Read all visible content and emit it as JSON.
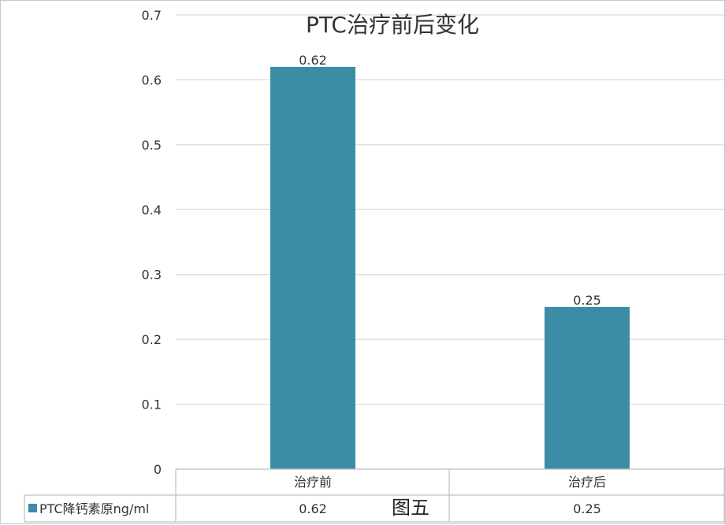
{
  "chart_data": {
    "type": "bar",
    "title": "PTC治疗前后变化",
    "categories": [
      "治疗前",
      "治疗后"
    ],
    "series": [
      {
        "name": "PTC降钙素原ng/ml",
        "values": [
          0.62,
          0.25
        ],
        "color": "#3c8ca5"
      }
    ],
    "ylim": [
      0,
      0.7
    ],
    "yticks": [
      "0",
      "0.1",
      "0.2",
      "0.3",
      "0.4",
      "0.5",
      "0.6",
      "0.7"
    ],
    "data_labels": [
      "0.62",
      "0.25"
    ],
    "table_values": [
      "0.62",
      "0.25"
    ],
    "grid": true,
    "legend": "data-table",
    "caption": "图五"
  }
}
